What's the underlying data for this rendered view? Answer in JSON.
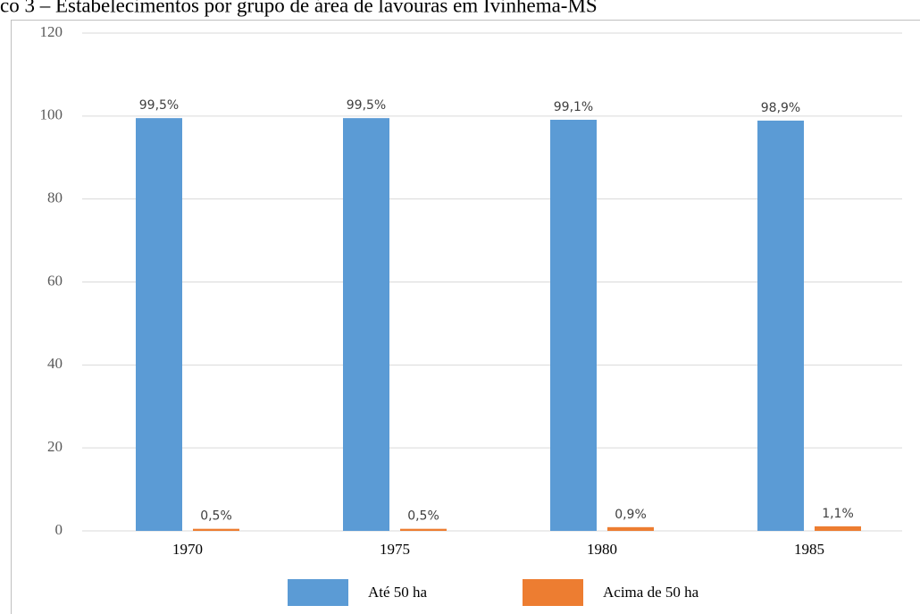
{
  "chart_data": {
    "type": "bar",
    "title": "co 3 – Estabelecimentos por grupo de área de lavouras em Ivinhema-MS",
    "categories": [
      "1970",
      "1975",
      "1980",
      "1985"
    ],
    "series": [
      {
        "name": "Até 50 ha",
        "color": "#5b9bd5",
        "values": [
          99.5,
          99.5,
          99.1,
          98.9
        ],
        "value_labels": [
          "99,5%",
          "99,5%",
          "99,1%",
          "98,9%"
        ]
      },
      {
        "name": "Acima de 50 ha",
        "color": "#ed7d31",
        "values": [
          0.5,
          0.5,
          0.9,
          1.1
        ],
        "value_labels": [
          "0,5%",
          "0,5%",
          "0,9%",
          "1,1%"
        ]
      }
    ],
    "ylim": [
      0,
      120
    ],
    "yticks": [
      0,
      20,
      40,
      60,
      80,
      100,
      120
    ],
    "grid": true,
    "legend": "bottom"
  }
}
